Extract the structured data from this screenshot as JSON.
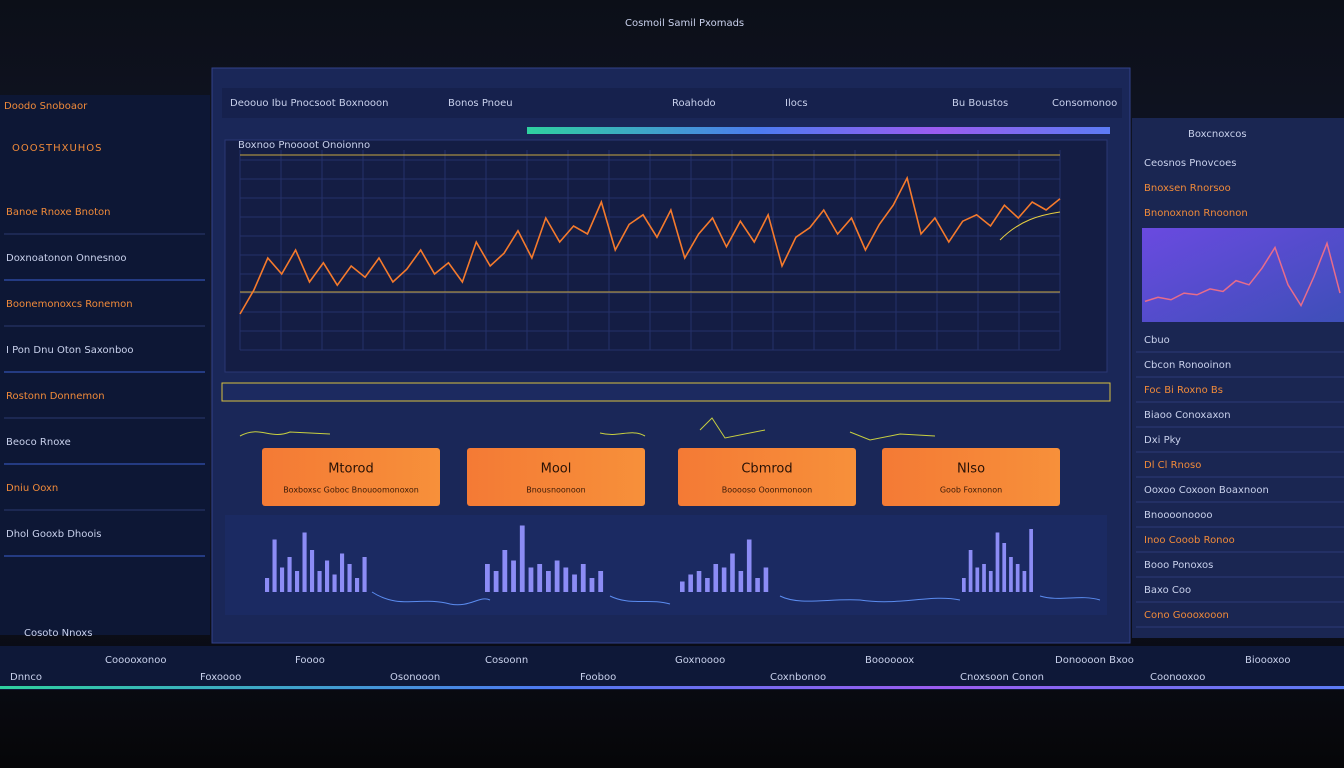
{
  "top_bar": {
    "title": "Cosmoil",
    "subtitle": "Samil Pxomads"
  },
  "left_panel": {
    "header": "Doodo Snoboaor",
    "title": "OOOSTHXUHOS",
    "items": [
      "Banoe Rnoxe Bnoton",
      "Doxnoatonon Onnesnoo",
      "Boonemonoxcs Ronemon",
      "I Pon Dnu Oton Saxonboo",
      "Rostonn Donnemon",
      "Beoco Rnoxe",
      "Dniu Ooxn",
      "Dhol Gooxb Dhoois"
    ],
    "footer": "Cosoto Nnoxs"
  },
  "main": {
    "header": "Deoouo Ibu Pnocsoot Boxnooon",
    "tabs": [
      "Bonos Pnoeu",
      "Roahodo",
      "Ilocs",
      "Bu Boustos",
      "Consomonoo"
    ],
    "chart_title": "Boxnoo Pnoooot Onoionno",
    "line_chart": {
      "ylim": [
        0,
        100
      ],
      "color": "#f57a2c",
      "values": [
        10,
        25,
        45,
        35,
        50,
        30,
        42,
        28,
        40,
        33,
        45,
        30,
        38,
        50,
        35,
        42,
        30,
        55,
        40,
        48,
        62,
        45,
        70,
        55,
        65,
        60,
        80,
        50,
        66,
        72,
        58,
        75,
        45,
        60,
        70,
        52,
        68,
        55,
        72,
        40,
        58,
        64,
        75,
        60,
        70,
        50,
        66,
        78,
        95,
        60,
        70,
        55,
        68,
        72,
        65,
        78,
        70,
        80,
        75,
        82
      ]
    },
    "buttons": [
      {
        "title": "Mtorod",
        "subtitle": "Boxboxsc Goboc Bnouoomonoxon"
      },
      {
        "title": "Mool",
        "subtitle": "Bnousnoonoon"
      },
      {
        "title": "Cbmrod",
        "subtitle": "Booooso Ooonmonoon"
      },
      {
        "title": "Nlso",
        "subtitle": "Goob Foxnonon"
      }
    ],
    "bar_chart": {
      "ylim": [
        0,
        100
      ],
      "color": "#8c8cf5",
      "groups": [
        [
          20,
          75,
          35,
          50,
          30,
          85,
          60,
          30,
          45,
          25,
          55,
          40,
          20,
          50
        ],
        [
          40,
          30,
          60,
          45,
          95,
          35,
          40,
          30,
          45,
          35,
          25,
          40,
          20,
          30
        ],
        [
          15,
          25,
          30,
          20,
          40,
          35,
          55,
          30,
          75,
          20,
          35
        ],
        [
          20,
          60,
          35,
          40,
          30,
          85,
          70,
          50,
          40,
          30,
          90
        ]
      ]
    }
  },
  "right_panel": {
    "header": "Boxcnoxcos",
    "items_top": [
      "Ceosnos Pnovcoes",
      "Bnoxsen Rnorsoo",
      "Bnonoxnon Rnoonon"
    ],
    "mini_chart": {
      "ylim": [
        0,
        100
      ],
      "color": "#e86c8a",
      "values": [
        20,
        25,
        22,
        30,
        28,
        35,
        32,
        45,
        40,
        60,
        85,
        40,
        15,
        50,
        90,
        30
      ]
    },
    "items": [
      "Cbuo",
      "Cbcon Ronooinon",
      "Foc Bi Roxno Bs",
      "Biaoo Conoxaxon",
      "Dxi Pky",
      "Dl Cl Rnoso",
      "Ooxoo Coxoon Boaxnoon",
      "Bnoooonoooo",
      "Inoo Cooob Ronoo",
      "Booo Ponoxos",
      "Baxo Coo",
      "Cono Goooxooon"
    ]
  },
  "footer": {
    "items": [
      "Dnnco",
      "Cooooxonoo",
      "Foxoooo",
      "Foooo",
      "Osonooon",
      "Cosoonn",
      "Fooboo",
      "Goxnoooo",
      "Coxnbonoo",
      "Boooooox",
      "Cnoxsoon Conon",
      "Donoooon Bxoo",
      "Coonooxoo",
      "Bioooxoo"
    ]
  }
}
